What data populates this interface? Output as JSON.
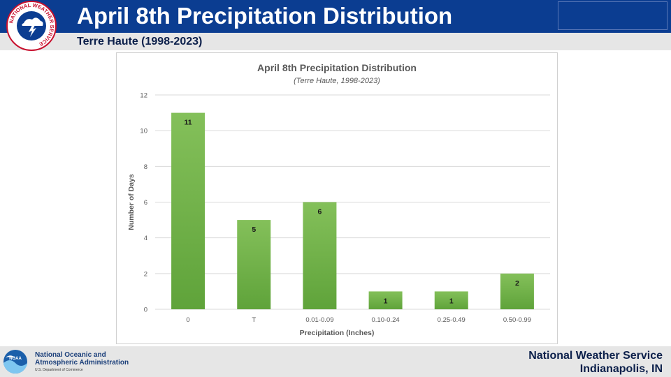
{
  "header": {
    "title": "April 8th Precipitation Distribution",
    "subtitle": "Terre Haute (1998-2023)"
  },
  "nws_logo": {
    "text": "NATIONAL WEATHER SERVICE"
  },
  "footer": {
    "noaa_name": "National Oceanic and Atmospheric Administration",
    "noaa_sub": "U.S. Department of Commerce",
    "noaa_logo_text": "NOAA",
    "office_line1": "National Weather Service",
    "office_line2": "Indianapolis, IN"
  },
  "colors": {
    "header_blue": "#0b3d91",
    "bar_green": "#6aac3f",
    "footer_gray": "#e6e6e6"
  },
  "chart_data": {
    "type": "bar",
    "title": "April 8th Precipitation Distribution",
    "subtitle": "(Terre Haute, 1998-2023)",
    "xlabel": "Precipitation (Inches)",
    "ylabel": "Number of Days",
    "categories": [
      "0",
      "T",
      "0.01-0.09",
      "0.10-0.24",
      "0.25-0.49",
      "0.50-0.99"
    ],
    "values": [
      11,
      5,
      6,
      1,
      1,
      2
    ],
    "ylim": [
      0,
      12
    ],
    "yticks": [
      0,
      2,
      4,
      6,
      8,
      10,
      12
    ],
    "grid": true,
    "data_labels": true
  }
}
